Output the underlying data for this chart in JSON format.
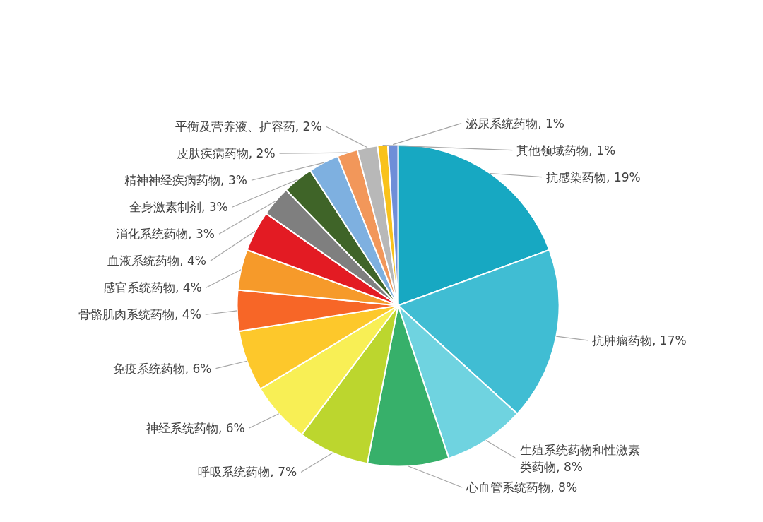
{
  "chart_data": {
    "type": "pie",
    "categories": [
      "抗感染药物",
      "抗肿瘤药物",
      "生殖系统药物和性激素类药物",
      "心血管系统药物",
      "呼吸系统药物",
      "神经系统药物",
      "免疫系统药物",
      "骨骼肌肉系统药物",
      "感官系统药物",
      "血液系统药物",
      "消化系统药物",
      "全身激素制剂",
      "精神神经疾病药物",
      "皮肤疾病药物",
      "平衡及营养液、扩容药",
      "其他领域药物",
      "泌尿系统药物"
    ],
    "values": [
      19,
      17,
      8,
      8,
      7,
      6,
      6,
      4,
      4,
      4,
      3,
      3,
      3,
      2,
      2,
      1,
      1
    ],
    "value_labels": [
      "19%",
      "17%",
      "8%",
      "8%",
      "7%",
      "6%",
      "6%",
      "4%",
      "4%",
      "4%",
      "3%",
      "3%",
      "3%",
      "2%",
      "2%",
      "1%",
      "1%"
    ],
    "colors": [
      "#17a8c2",
      "#40bdd3",
      "#6fd3e0",
      "#37b06a",
      "#bcd62e",
      "#f8ef55",
      "#fdc82b",
      "#f76627",
      "#f69a2a",
      "#e31b23",
      "#7f7f7f",
      "#3f6428",
      "#7eb0e0",
      "#f2975a",
      "#b8b8b8",
      "#f9c21b",
      "#6e8ed8"
    ],
    "legend": false
  }
}
